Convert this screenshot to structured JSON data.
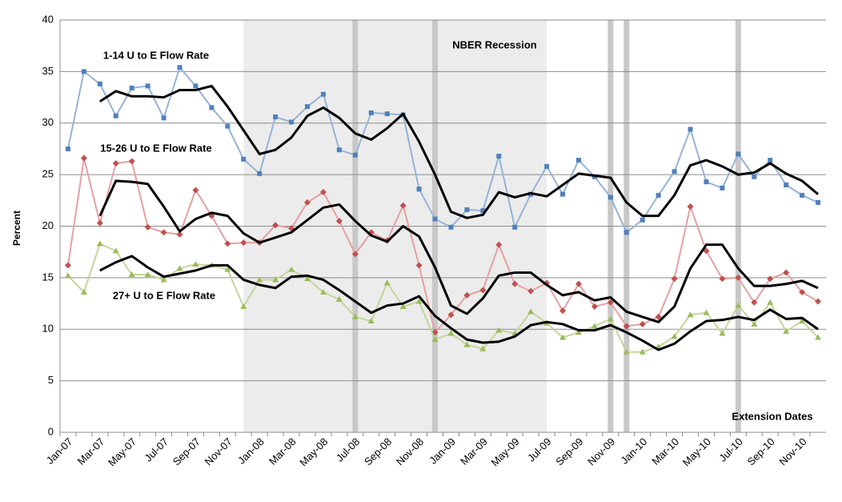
{
  "chart_data": {
    "type": "line",
    "y_label": "Percent",
    "categories": [
      "Jan-07",
      null,
      "Mar-07",
      null,
      "May-07",
      null,
      "Jul-07",
      null,
      "Sep-07",
      null,
      "Nov-07",
      null,
      "Jan-08",
      null,
      "Mar-08",
      null,
      "May-08",
      null,
      "Jul-08",
      null,
      "Sep-08",
      null,
      "Nov-08",
      null,
      "Jan-09",
      null,
      "Mar-09",
      null,
      "May-09",
      null,
      "Jul-09",
      null,
      "Sep-09",
      null,
      "Nov-09",
      null,
      "Jan-10",
      null,
      "Mar-10",
      null,
      "May-10",
      null,
      "Jul-10",
      null,
      "Sep-10",
      null,
      "Nov-10",
      null
    ],
    "ylim": [
      0,
      40
    ],
    "yticks": [
      0,
      5,
      10,
      15,
      20,
      25,
      30,
      35,
      40
    ],
    "grid": true,
    "series": [
      {
        "name": "1-14 U to E Flow Rate",
        "color": "#4f81bd",
        "line_color": "#95b3d7",
        "marker": "square",
        "values": [
          27.5,
          35.0,
          33.8,
          30.7,
          33.4,
          33.6,
          30.5,
          35.4,
          33.6,
          31.5,
          29.7,
          26.5,
          25.1,
          30.6,
          30.1,
          31.6,
          32.8,
          27.4,
          26.9,
          31.0,
          30.9,
          30.8,
          23.6,
          20.7,
          19.9,
          21.6,
          21.5,
          26.8,
          19.9,
          23.1,
          25.8,
          23.1,
          26.4,
          24.8,
          22.8,
          19.4,
          20.6,
          23.0,
          25.3,
          29.4,
          24.3,
          23.7,
          27.0,
          24.8,
          26.4,
          24.0,
          23.0,
          22.3
        ]
      },
      {
        "name": "15-26 U to E Flow Rate",
        "color": "#c0504d",
        "line_color": "#e6a0a0",
        "marker": "diamond",
        "values": [
          16.2,
          26.6,
          20.3,
          26.1,
          26.3,
          19.9,
          19.4,
          19.2,
          23.5,
          21.0,
          18.3,
          18.4,
          18.4,
          20.1,
          19.8,
          22.3,
          23.3,
          20.5,
          17.3,
          19.4,
          18.6,
          22.0,
          16.2,
          9.7,
          11.4,
          13.3,
          13.8,
          18.2,
          14.4,
          13.7,
          14.5,
          11.8,
          14.4,
          12.2,
          12.6,
          10.3,
          10.5,
          11.2,
          14.9,
          21.9,
          17.6,
          14.9,
          15.0,
          12.6,
          14.9,
          15.5,
          13.6,
          12.7
        ]
      },
      {
        "name": "27+ U to E Flow Rate",
        "color": "#9bbb59",
        "line_color": "#c3d69b",
        "marker": "triangle",
        "values": [
          15.2,
          13.6,
          18.3,
          17.6,
          15.3,
          15.3,
          14.8,
          15.9,
          16.3,
          16.2,
          15.8,
          12.2,
          14.8,
          14.8,
          15.8,
          14.9,
          13.6,
          12.9,
          11.2,
          10.8,
          14.5,
          12.2,
          12.7,
          9.0,
          9.6,
          8.5,
          8.1,
          9.9,
          9.6,
          11.7,
          10.6,
          9.2,
          9.7,
          10.3,
          11.0,
          7.8,
          7.8,
          8.3,
          9.3,
          11.4,
          11.6,
          9.6,
          12.3,
          10.5,
          12.6,
          9.8,
          10.8,
          9.2
        ]
      },
      {
        "color": "#000000",
        "values": [
          null,
          null,
          32.1,
          33.1,
          32.6,
          32.6,
          32.5,
          33.2,
          33.2,
          33.6,
          31.6,
          29.3,
          27.0,
          27.4,
          28.6,
          30.7,
          31.5,
          30.5,
          29.0,
          28.4,
          29.5,
          30.9,
          28.2,
          25.0,
          21.4,
          20.8,
          21.1,
          23.3,
          22.8,
          23.2,
          22.9,
          24.0,
          25.1,
          24.9,
          24.7,
          22.3,
          21.0,
          21.0,
          23.0,
          25.9,
          26.4,
          25.8,
          25.0,
          25.2,
          26.1,
          25.1,
          24.4,
          23.1
        ]
      },
      {
        "color": "#000000",
        "values": [
          null,
          null,
          21.0,
          24.4,
          24.3,
          24.1,
          21.9,
          19.5,
          20.7,
          21.3,
          21.0,
          19.3,
          18.4,
          18.9,
          19.4,
          20.6,
          21.8,
          22.1,
          20.5,
          19.1,
          18.5,
          20.0,
          19.0,
          16.0,
          12.3,
          11.5,
          13.0,
          15.2,
          15.5,
          15.5,
          14.3,
          13.3,
          13.6,
          12.8,
          13.1,
          11.7,
          11.2,
          10.7,
          12.2,
          15.9,
          18.2,
          18.2,
          15.9,
          14.2,
          14.2,
          14.4,
          14.7,
          14.0
        ]
      },
      {
        "color": "#000000",
        "values": [
          null,
          null,
          15.7,
          16.5,
          17.1,
          16.0,
          15.1,
          15.4,
          15.7,
          16.2,
          16.2,
          14.8,
          14.3,
          14.0,
          15.1,
          15.2,
          14.8,
          13.8,
          12.7,
          11.6,
          12.3,
          12.5,
          13.2,
          11.3,
          10.1,
          9.0,
          8.7,
          8.8,
          9.3,
          10.4,
          10.7,
          10.5,
          9.9,
          9.9,
          10.4,
          9.7,
          8.9,
          8.0,
          8.6,
          9.8,
          10.8,
          10.9,
          11.2,
          10.9,
          11.9,
          11.0,
          11.1,
          10.0
        ]
      }
    ],
    "recession": {
      "label": "NBER Recession",
      "start": 11,
      "end": 30,
      "color": "#ececec"
    },
    "extensions": {
      "label": "Extension Dates",
      "indices": [
        18,
        23,
        34,
        35,
        42
      ],
      "color": "#c8c8c8"
    }
  }
}
